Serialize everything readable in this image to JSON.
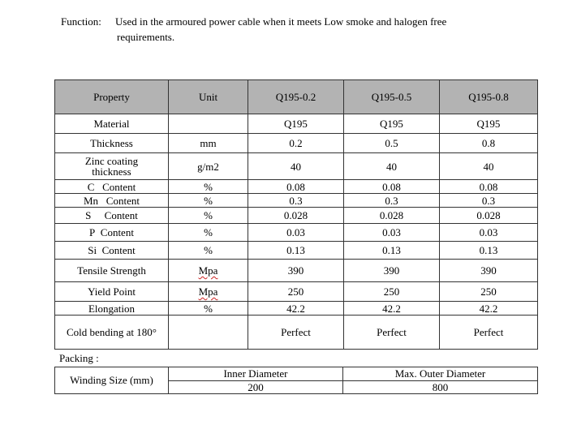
{
  "function": {
    "label": "Function:",
    "line1": "Used in the armoured power cable when it meets Low smoke and halogen free",
    "line2": "requirements."
  },
  "table": {
    "headers": [
      "Property",
      "Unit",
      "Q195-0.2",
      "Q195-0.5",
      "Q195-0.8"
    ],
    "rows": [
      [
        "Material",
        "",
        "Q195",
        "Q195",
        "Q195"
      ],
      [
        "Thickness",
        "mm",
        "0.2",
        "0.5",
        "0.8"
      ],
      [
        "Zinc coating thickness",
        "g/m2",
        "40",
        "40",
        "40"
      ],
      [
        "C   Content",
        "%",
        "0.08",
        "0.08",
        "0.08"
      ],
      [
        "Mn   Content",
        "%",
        "0.3",
        "0.3",
        "0.3"
      ],
      [
        "S     Content",
        "%",
        "0.028",
        "0.028",
        "0.028"
      ],
      [
        "P  Content",
        "%",
        "0.03",
        "0.03",
        "0.03"
      ],
      [
        "Si  Content",
        "%",
        "0.13",
        "0.13",
        "0.13"
      ],
      [
        "Tensile Strength",
        "Mpa",
        "390",
        "390",
        "390"
      ],
      [
        "Yield Point",
        "Mpa",
        "250",
        "250",
        "250"
      ],
      [
        "Elongation",
        "%",
        "42.2",
        "42.2",
        "42.2"
      ],
      [
        "Cold bending at 180°",
        "",
        "Perfect",
        "Perfect",
        "Perfect"
      ]
    ]
  },
  "packing": {
    "label": "Packing :",
    "winding_label": "Winding Size (mm)",
    "inner_label": "Inner Diameter",
    "inner_value": "200",
    "outer_label": "Max. Outer Diameter",
    "outer_value": "800"
  }
}
